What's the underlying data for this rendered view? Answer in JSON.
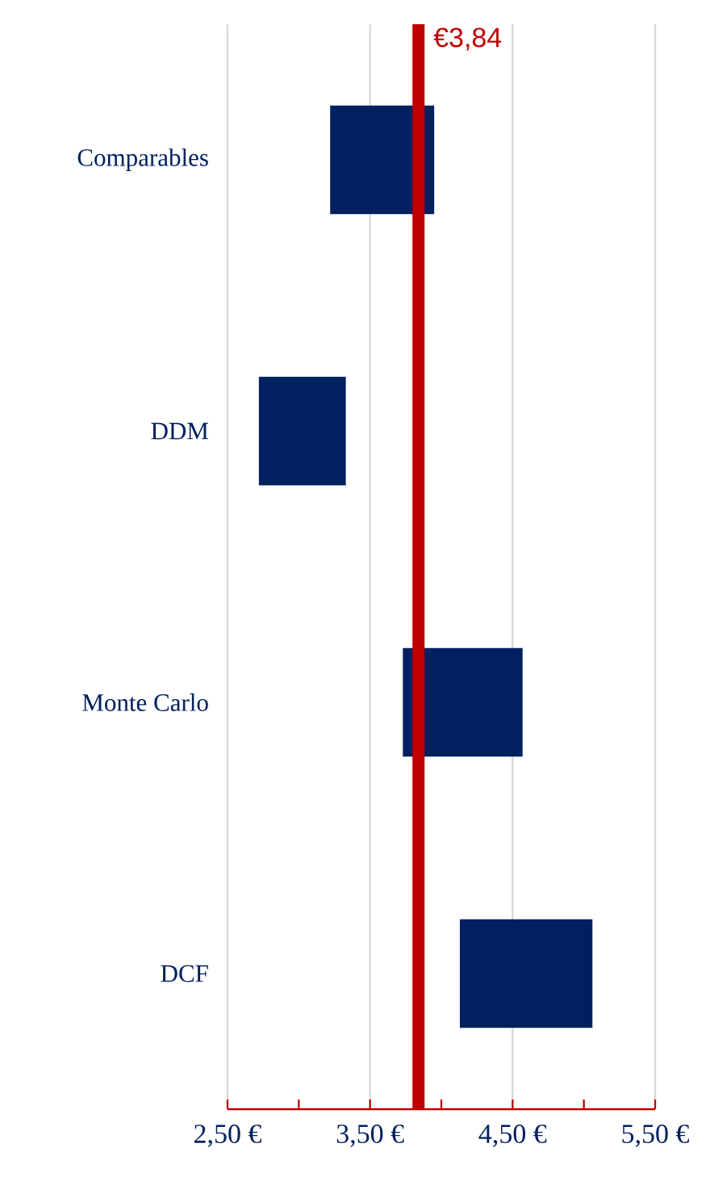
{
  "chart_data": {
    "type": "bar",
    "orientation": "horizontal",
    "categories": [
      "Comparables",
      "DDM",
      "Monte Carlo",
      "DCF"
    ],
    "base": [
      3.22,
      2.72,
      3.73,
      4.13
    ],
    "values": [
      0.73,
      0.61,
      0.84,
      0.93
    ],
    "color": "#002060",
    "xlim": [
      2.5,
      5.5
    ],
    "xticks": [
      {
        "value": 2.5,
        "label": "2,50 €"
      },
      {
        "value": 3.0,
        "label": null
      },
      {
        "value": 3.5,
        "label": "3,50 €"
      },
      {
        "value": 4.0,
        "label": null
      },
      {
        "value": 4.5,
        "label": "4,50 €"
      },
      {
        "value": 5.0,
        "label": null
      },
      {
        "value": 5.5,
        "label": "5,50 €"
      }
    ],
    "grid": "x",
    "ref_lines": [
      {
        "axis": "x",
        "value": 3.84,
        "label": "€3,84",
        "color": "#c00000"
      }
    ]
  }
}
